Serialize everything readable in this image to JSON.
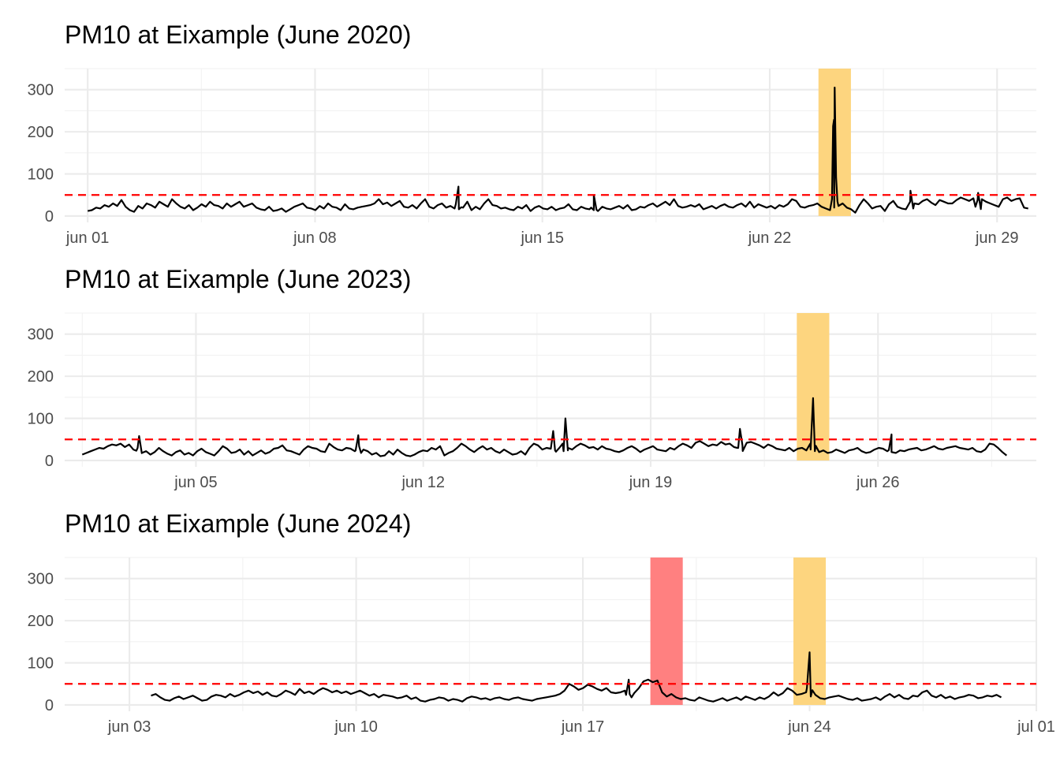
{
  "chart_data": [
    {
      "type": "line",
      "title": "PM10 at Eixample (June 2020)",
      "xlabel": "",
      "ylabel": "",
      "x_range": [
        "2020-05-31T07:00",
        "2020-06-30T05:00"
      ],
      "x_start": "2020-06-01T00:00",
      "x_end": "2020-06-29T23:00",
      "ylim": [
        -15,
        350
      ],
      "yticks": [
        0,
        100,
        200,
        300
      ],
      "xticks": [
        {
          "date": "2020-06-01",
          "label": "jun 01"
        },
        {
          "date": "2020-06-08",
          "label": "jun 08"
        },
        {
          "date": "2020-06-15",
          "label": "jun 15"
        },
        {
          "date": "2020-06-22",
          "label": "jun 22"
        },
        {
          "date": "2020-06-29",
          "label": "jun 29"
        }
      ],
      "threshold": 50,
      "highlights": [
        {
          "start": "2020-06-23T12:00",
          "end": "2020-06-24T12:00",
          "color": "#fdd57f"
        }
      ],
      "spikes": [
        {
          "at": "2020-06-12T10:00",
          "value": 70
        },
        {
          "at": "2020-06-16T14:00",
          "value": 50
        },
        {
          "at": "2020-06-24T00:00",
          "value": 305
        },
        {
          "at": "2020-06-26T08:00",
          "value": 60
        },
        {
          "at": "2020-06-28T10:00",
          "value": 55
        }
      ],
      "values": [
        12,
        14,
        20,
        18,
        26,
        22,
        30,
        24,
        38,
        22,
        14,
        10,
        24,
        18,
        30,
        26,
        20,
        34,
        28,
        22,
        40,
        30,
        22,
        18,
        26,
        14,
        20,
        28,
        22,
        34,
        26,
        24,
        18,
        30,
        22,
        28,
        34,
        22,
        26,
        30,
        20,
        16,
        14,
        22,
        12,
        14,
        18,
        10,
        16,
        22,
        26,
        30,
        20,
        18,
        14,
        24,
        18,
        30,
        22,
        20,
        14,
        28,
        18,
        16,
        20,
        22,
        24,
        26,
        30,
        40,
        28,
        32,
        24,
        30,
        36,
        22,
        20,
        26,
        18,
        30,
        40,
        22,
        18,
        26,
        30,
        20,
        24,
        18,
        16,
        20,
        34,
        14,
        22,
        16,
        30,
        40,
        26,
        24,
        18,
        20,
        16,
        14,
        22,
        18,
        26,
        12,
        20,
        24,
        18,
        16,
        22,
        14,
        18,
        20,
        28,
        16,
        14,
        22,
        18,
        16,
        14,
        12,
        22,
        18,
        16,
        20,
        24,
        18,
        26,
        14,
        16,
        22,
        20,
        26,
        30,
        22,
        28,
        34,
        26,
        40,
        24,
        20,
        22,
        26,
        22,
        28,
        16,
        20,
        24,
        18,
        24,
        28,
        22,
        20,
        26,
        30,
        22,
        34,
        20,
        28,
        24,
        20,
        24,
        18,
        26,
        22,
        28,
        40,
        36,
        22,
        20,
        24,
        26,
        30,
        22,
        18,
        14,
        20,
        24,
        30,
        20,
        16,
        8,
        26,
        40,
        30,
        18,
        22,
        24,
        12,
        28,
        36,
        22,
        18,
        16,
        34,
        30,
        28,
        36,
        40,
        32,
        26,
        38,
        34,
        30,
        30,
        38,
        44,
        40,
        36,
        42,
        38,
        40,
        34,
        30,
        26,
        22,
        40,
        44,
        36,
        40,
        42,
        20,
        18
      ]
    },
    {
      "type": "line",
      "title": "PM10 at Eixample (June 2023)",
      "xlabel": "",
      "ylabel": "",
      "x_range": [
        "2023-05-31T23:00",
        "2023-06-30T21:00"
      ],
      "x_start": "2023-06-01T12:00",
      "x_end": "2023-06-29T23:00",
      "ylim": [
        -15,
        350
      ],
      "yticks": [
        0,
        100,
        200,
        300
      ],
      "xticks": [
        {
          "date": "2023-06-05",
          "label": "jun 05"
        },
        {
          "date": "2023-06-12",
          "label": "jun 12"
        },
        {
          "date": "2023-06-19",
          "label": "jun 19"
        },
        {
          "date": "2023-06-26",
          "label": "jun 26"
        }
      ],
      "threshold": 50,
      "highlights": [
        {
          "start": "2023-06-23T12:00",
          "end": "2023-06-24T12:00",
          "color": "#fdd57f"
        }
      ],
      "spikes": [
        {
          "at": "2023-06-03T06:00",
          "value": 58
        },
        {
          "at": "2023-06-10T00:00",
          "value": 60
        },
        {
          "at": "2023-06-16T00:00",
          "value": 70
        },
        {
          "at": "2023-06-16T09:00",
          "value": 100
        },
        {
          "at": "2023-06-21T18:00",
          "value": 75
        },
        {
          "at": "2023-06-24T00:00",
          "value": 148
        },
        {
          "at": "2023-06-26T10:00",
          "value": 62
        }
      ],
      "values": [
        14,
        18,
        22,
        26,
        30,
        28,
        34,
        38,
        36,
        40,
        32,
        38,
        26,
        30,
        18,
        22,
        14,
        20,
        30,
        22,
        16,
        12,
        20,
        24,
        14,
        18,
        12,
        22,
        28,
        20,
        16,
        12,
        22,
        34,
        28,
        18,
        20,
        26,
        14,
        22,
        12,
        18,
        24,
        16,
        20,
        28,
        30,
        36,
        24,
        22,
        18,
        14,
        26,
        34,
        30,
        28,
        22,
        20,
        40,
        32,
        26,
        24,
        30,
        28,
        22,
        34,
        26,
        22,
        14,
        18,
        10,
        12,
        22,
        14,
        26,
        18,
        12,
        10,
        14,
        20,
        24,
        22,
        30,
        26,
        34,
        12,
        18,
        22,
        30,
        40,
        34,
        26,
        20,
        28,
        34,
        26,
        30,
        22,
        18,
        26,
        20,
        14,
        16,
        22,
        14,
        30,
        40,
        36,
        26,
        30,
        28,
        24,
        30,
        22,
        24,
        26,
        34,
        40,
        36,
        30,
        32,
        26,
        34,
        28,
        26,
        22,
        20,
        24,
        30,
        34,
        28,
        20,
        26,
        30,
        34,
        26,
        24,
        22,
        30,
        26,
        34,
        40,
        36,
        30,
        42,
        46,
        40,
        34,
        38,
        36,
        44,
        38,
        40,
        32,
        30,
        36,
        42,
        44,
        40,
        36,
        30,
        38,
        34,
        28,
        26,
        24,
        30,
        22,
        28,
        30,
        24,
        26,
        22,
        20,
        24,
        18,
        20,
        26,
        22,
        18,
        24,
        26,
        30,
        22,
        18,
        20,
        26,
        30,
        28,
        22,
        20,
        18,
        24,
        22,
        26,
        28,
        30,
        24,
        26,
        30,
        34,
        28,
        26,
        30,
        32,
        34,
        30,
        28,
        26,
        30,
        22,
        20,
        26,
        40,
        38,
        30,
        20,
        12
      ]
    },
    {
      "type": "line",
      "title": "PM10 at Eixample (June 2024)",
      "xlabel": "",
      "ylabel": "",
      "x_range": [
        "2024-06-01T00:00",
        "2024-07-01T00:00"
      ],
      "x_start": "2024-06-03T16:00",
      "x_end": "2024-06-29T22:00",
      "ylim": [
        -15,
        350
      ],
      "yticks": [
        0,
        100,
        200,
        300
      ],
      "xticks": [
        {
          "date": "2024-06-03",
          "label": "jun 03"
        },
        {
          "date": "2024-06-10",
          "label": "jun 10"
        },
        {
          "date": "2024-06-17",
          "label": "jun 17"
        },
        {
          "date": "2024-06-24",
          "label": "jun 24"
        },
        {
          "date": "2024-07-01",
          "label": "jul 01"
        }
      ],
      "threshold": 50,
      "highlights": [
        {
          "start": "2024-06-19T02:00",
          "end": "2024-06-20T02:00",
          "color": "#ff8080"
        },
        {
          "start": "2024-06-23T12:00",
          "end": "2024-06-24T12:00",
          "color": "#fdd57f"
        }
      ],
      "spikes": [
        {
          "at": "2024-06-18T10:00",
          "value": 60
        },
        {
          "at": "2024-06-24T00:00",
          "value": 125
        }
      ],
      "values": [
        22,
        26,
        18,
        12,
        10,
        16,
        20,
        14,
        18,
        22,
        16,
        10,
        12,
        20,
        24,
        22,
        18,
        26,
        20,
        24,
        30,
        34,
        28,
        32,
        24,
        30,
        22,
        20,
        26,
        34,
        30,
        24,
        38,
        28,
        32,
        26,
        34,
        40,
        36,
        30,
        34,
        28,
        32,
        26,
        30,
        34,
        28,
        22,
        26,
        18,
        24,
        22,
        20,
        16,
        18,
        22,
        14,
        18,
        10,
        8,
        12,
        14,
        18,
        16,
        10,
        14,
        12,
        8,
        16,
        20,
        18,
        14,
        16,
        12,
        16,
        18,
        14,
        12,
        16,
        18,
        14,
        12,
        10,
        14,
        16,
        18,
        20,
        22,
        26,
        34,
        50,
        44,
        36,
        40,
        48,
        44,
        38,
        34,
        40,
        30,
        28,
        30,
        34,
        26,
        28,
        40,
        56,
        60,
        54,
        58,
        30,
        20,
        26,
        18,
        14,
        16,
        12,
        10,
        18,
        14,
        10,
        8,
        12,
        16,
        10,
        14,
        18,
        12,
        20,
        16,
        12,
        18,
        14,
        20,
        30,
        22,
        28,
        40,
        34,
        24,
        26,
        30,
        20,
        24,
        16,
        14,
        18,
        20,
        22,
        18,
        14,
        12,
        16,
        10,
        12,
        14,
        18,
        12,
        20,
        26,
        18,
        24,
        16,
        14,
        22,
        20,
        30,
        34,
        22,
        18,
        24,
        16,
        20,
        14,
        18,
        20,
        24,
        22,
        16,
        18,
        22,
        20,
        24,
        18
      ]
    }
  ]
}
